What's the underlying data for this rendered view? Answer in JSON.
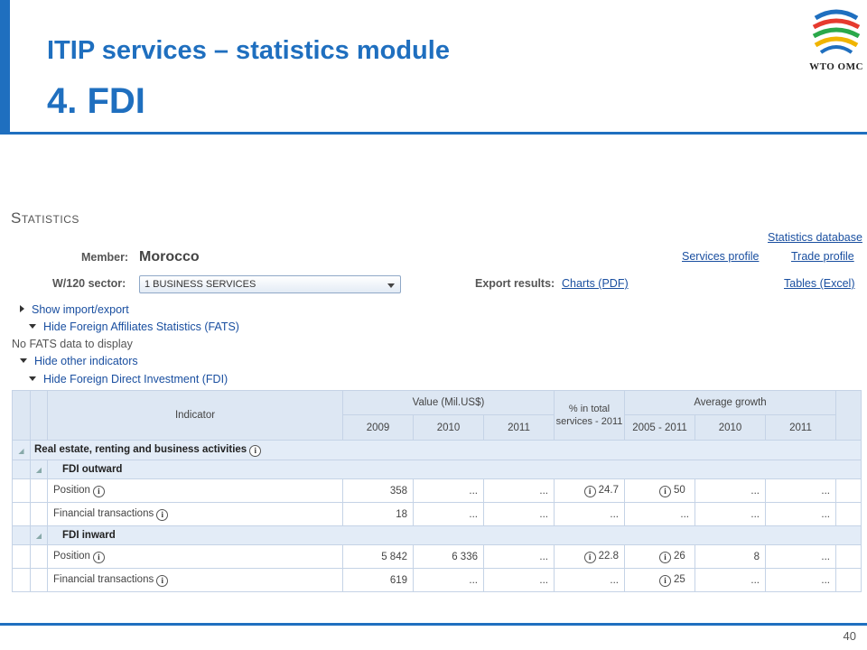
{
  "slide": {
    "title": "ITIP services – statistics module",
    "subtitle": "4. FDI",
    "page_number": "40",
    "logo_text": "WTO OMC",
    "accent_color": "#1f6fbf"
  },
  "statistics": {
    "heading": "Statistics",
    "member_label": "Member:",
    "member_value": "Morocco",
    "sector_label": "W/120 sector:",
    "sector_value": "1 BUSINESS SERVICES",
    "export_label": "Export results:",
    "links": {
      "statistics_database": "Statistics database",
      "services_profile": "Services profile",
      "trade_profile": "Trade profile",
      "charts_pdf": "Charts (PDF)",
      "tables_excel": "Tables (Excel)"
    },
    "toggles": {
      "show_import_export": "Show import/export",
      "hide_fats": "Hide Foreign Affiliates Statistics (FATS)",
      "no_fats": "No FATS data to display",
      "hide_other": "Hide other indicators",
      "hide_fdi": "Hide Foreign Direct Investment (FDI)"
    }
  },
  "table": {
    "headers": {
      "indicator": "Indicator",
      "value_group": "Value (Mil.US$)",
      "pct_group": "% in total services - 2011",
      "growth_group": "Average growth",
      "years": [
        "2009",
        "2010",
        "2011"
      ],
      "growth_years": [
        "2005 - 2011",
        "2010",
        "2011"
      ]
    },
    "section": "Real estate, renting and business activities",
    "groups": [
      {
        "name": "FDI outward",
        "rows": [
          {
            "label": "Position",
            "v2009": "358",
            "v2010": "...",
            "v2011": "...",
            "pct": "24.7",
            "g0511": "50",
            "g2010": "...",
            "g2011": "..."
          },
          {
            "label": "Financial transactions",
            "v2009": "18",
            "v2010": "...",
            "v2011": "...",
            "pct": "...",
            "g0511": "...",
            "g2010": "...",
            "g2011": "..."
          }
        ]
      },
      {
        "name": "FDI inward",
        "rows": [
          {
            "label": "Position",
            "v2009": "5 842",
            "v2010": "6 336",
            "v2011": "...",
            "pct": "22.8",
            "g0511": "26",
            "g2010": "8",
            "g2011": "..."
          },
          {
            "label": "Financial transactions",
            "v2009": "619",
            "v2010": "...",
            "v2011": "...",
            "pct": "...",
            "g0511": "25",
            "g2010": "...",
            "g2011": "..."
          }
        ]
      }
    ]
  }
}
